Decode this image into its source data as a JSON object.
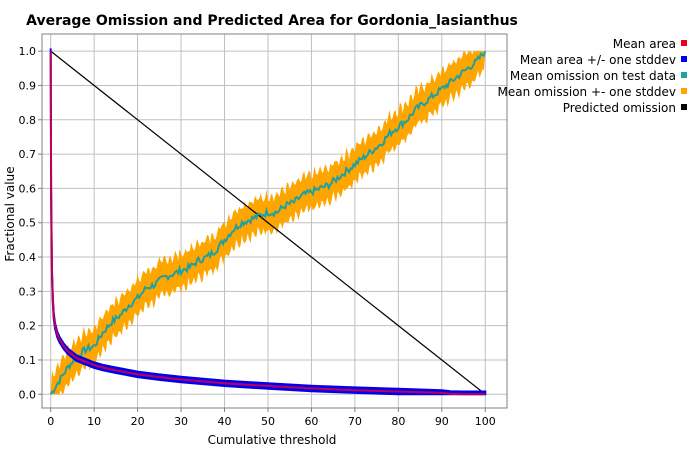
{
  "chart_data": {
    "type": "line",
    "title": "Average Omission and Predicted Area for Gordonia_lasianthus",
    "xlabel": "Cumulative threshold",
    "ylabel": "Fractional value",
    "xlim": [
      -2,
      105
    ],
    "ylim": [
      -0.04,
      1.05
    ],
    "xticks": [
      0,
      10,
      20,
      30,
      40,
      50,
      60,
      70,
      80,
      90,
      100
    ],
    "yticks": [
      0.0,
      0.1,
      0.2,
      0.3,
      0.4,
      0.5,
      0.6,
      0.7,
      0.8,
      0.9,
      1.0
    ],
    "x_tick_labels": [
      "0",
      "10",
      "20",
      "30",
      "40",
      "50",
      "60",
      "70",
      "80",
      "90",
      "100"
    ],
    "y_tick_labels": [
      "0.0",
      "0.1",
      "0.2",
      "0.3",
      "0.4",
      "0.5",
      "0.6",
      "0.7",
      "0.8",
      "0.9",
      "1.0"
    ],
    "grid": true,
    "legend_position": "top-right outside plot",
    "series": [
      {
        "name": "Mean area",
        "color": "#e8001c",
        "x": [
          0,
          0.1,
          0.2,
          0.3,
          0.5,
          0.7,
          1,
          1.5,
          2,
          3,
          4,
          5,
          6,
          8,
          10,
          12,
          15,
          20,
          25,
          30,
          40,
          50,
          60,
          70,
          80,
          90,
          92,
          95,
          100
        ],
        "y": [
          1.0,
          0.6,
          0.45,
          0.35,
          0.27,
          0.23,
          0.2,
          0.175,
          0.16,
          0.14,
          0.125,
          0.115,
          0.105,
          0.095,
          0.085,
          0.078,
          0.07,
          0.058,
          0.05,
          0.043,
          0.032,
          0.024,
          0.017,
          0.012,
          0.008,
          0.004,
          0.001,
          0.0,
          0.0
        ]
      },
      {
        "name": "Mean area +/- one stddev",
        "color": "#0000ee",
        "band_width": 0.008
      },
      {
        "name": "Mean omission on test data",
        "color": "#20a0a0",
        "x": [
          0,
          2,
          4,
          6,
          8,
          10,
          12,
          14,
          16,
          18,
          20,
          22,
          24,
          26,
          28,
          30,
          32,
          34,
          36,
          38,
          40,
          42,
          44,
          46,
          48,
          50,
          52,
          54,
          56,
          58,
          60,
          62,
          64,
          66,
          68,
          70,
          72,
          74,
          76,
          78,
          80,
          82,
          84,
          86,
          88,
          90,
          92,
          94,
          96,
          98,
          100
        ],
        "y": [
          0.0,
          0.04,
          0.08,
          0.11,
          0.13,
          0.14,
          0.18,
          0.21,
          0.23,
          0.26,
          0.28,
          0.31,
          0.32,
          0.34,
          0.35,
          0.36,
          0.37,
          0.39,
          0.4,
          0.42,
          0.45,
          0.48,
          0.5,
          0.51,
          0.52,
          0.53,
          0.53,
          0.55,
          0.56,
          0.58,
          0.59,
          0.6,
          0.61,
          0.63,
          0.65,
          0.67,
          0.69,
          0.71,
          0.73,
          0.76,
          0.78,
          0.8,
          0.83,
          0.85,
          0.87,
          0.89,
          0.91,
          0.93,
          0.95,
          0.97,
          1.0
        ]
      },
      {
        "name": "Mean omission +- one stddev",
        "color": "#ffa500",
        "band_width": 0.05
      },
      {
        "name": "Predicted omission",
        "color": "#000000",
        "x": [
          0,
          100
        ],
        "y": [
          1.0,
          0.0
        ]
      }
    ],
    "extra_line_color": "#b0006e"
  }
}
